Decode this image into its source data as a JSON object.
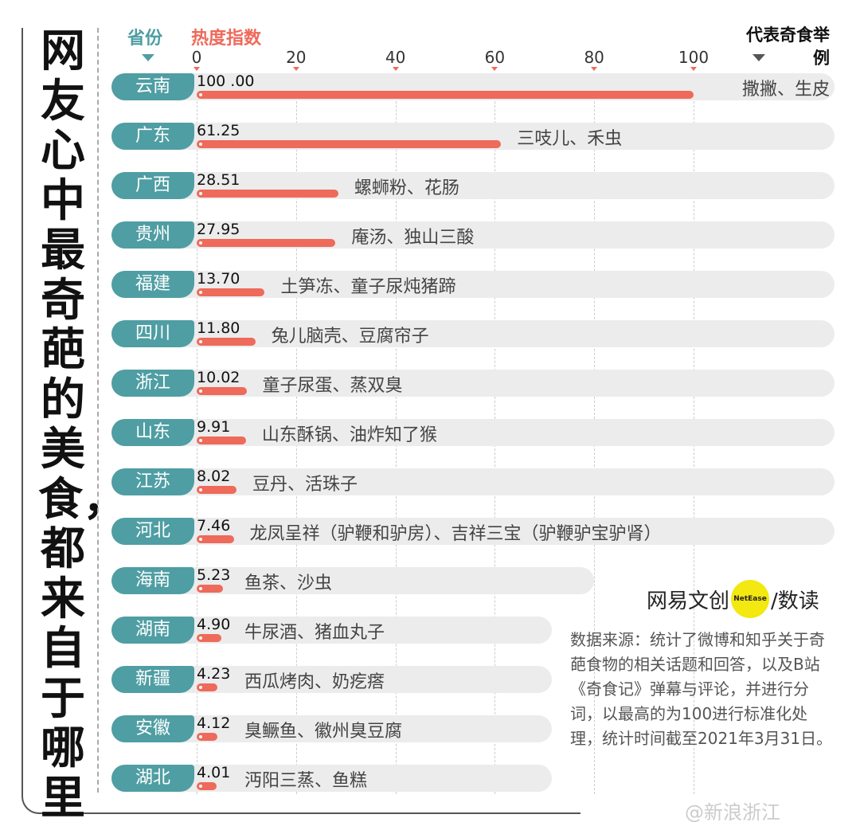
{
  "title": "网友心中最奇葩的美食，都来自于哪里",
  "logo": {
    "brand": "网易文创",
    "badge": "NetEase",
    "product": "/数读"
  },
  "source": "数据来源：统计了微博和知乎关于奇葩食物的相关话题和回答，以及B站《奇食记》弹幕与评论，并进行分词，以最高的为100进行标准化处理，统计时间截至2021年3月31日。",
  "watermark": "@新浪浙江",
  "chart_data": {
    "type": "bar",
    "orientation": "horizontal",
    "title": "网友心中最奇葩的美食，都来自于哪里",
    "category_header": "省份",
    "value_header": "热度指数",
    "note_header": "代表奇食举例",
    "xlim": [
      0,
      100
    ],
    "xticks": [
      0,
      20,
      40,
      60,
      80,
      100
    ],
    "colors": {
      "bar": "#ee6a5a",
      "province": "#4f9ea3"
    },
    "rows": [
      {
        "province": "云南",
        "value": 100.0,
        "label": "100 .00",
        "food": "撒撇、生皮"
      },
      {
        "province": "广东",
        "value": 61.25,
        "label": "61.25",
        "food": "三吱儿、禾虫"
      },
      {
        "province": "广西",
        "value": 28.51,
        "label": "28.51",
        "food": "螺蛳粉、花肠"
      },
      {
        "province": "贵州",
        "value": 27.95,
        "label": "27.95",
        "food": "庵汤、独山三酸"
      },
      {
        "province": "福建",
        "value": 13.7,
        "label": "13.70",
        "food": "土笋冻、童子尿炖猪蹄"
      },
      {
        "province": "四川",
        "value": 11.8,
        "label": "11.80",
        "food": "兔儿脑壳、豆腐帘子"
      },
      {
        "province": "浙江",
        "value": 10.02,
        "label": "10.02",
        "food": "童子尿蛋、蒸双臭"
      },
      {
        "province": "山东",
        "value": 9.91,
        "label": "9.91",
        "food": "山东酥锅、油炸知了猴"
      },
      {
        "province": "江苏",
        "value": 8.02,
        "label": "8.02",
        "food": "豆丹、活珠子"
      },
      {
        "province": "河北",
        "value": 7.46,
        "label": "7.46",
        "food": "龙凤呈祥（驴鞭和驴房）、吉祥三宝（驴鞭驴宝驴肾）"
      },
      {
        "province": "海南",
        "value": 5.23,
        "label": "5.23",
        "food": "鱼茶、沙虫"
      },
      {
        "province": "湖南",
        "value": 4.9,
        "label": "4.90",
        "food": "牛尿酒、猪血丸子"
      },
      {
        "province": "新疆",
        "value": 4.23,
        "label": "4.23",
        "food": "西瓜烤肉、奶疙瘩"
      },
      {
        "province": "安徽",
        "value": 4.12,
        "label": "4.12",
        "food": "臭鳜鱼、徽州臭豆腐"
      },
      {
        "province": "湖北",
        "value": 4.01,
        "label": "4.01",
        "food": "沔阳三蒸、鱼糕"
      }
    ]
  }
}
